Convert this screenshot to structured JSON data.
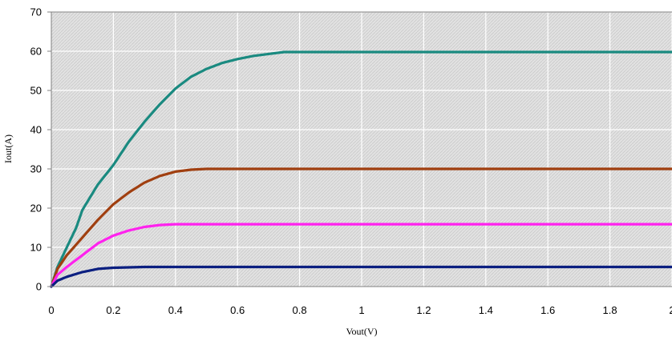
{
  "chart_data": {
    "type": "line",
    "xlabel": "Vout(V)",
    "ylabel": "Iout(A)",
    "xlim": [
      0,
      2
    ],
    "ylim": [
      0,
      70
    ],
    "xticks": [
      0,
      0.2,
      0.4,
      0.6,
      0.8,
      1,
      1.2,
      1.4,
      1.6,
      1.8,
      2
    ],
    "xtick_labels": [
      "0",
      "0.2",
      "0.4",
      "0.6",
      "0.8",
      "1",
      "1.2",
      "1.4",
      "1.6",
      "1.8",
      "2"
    ],
    "yticks": [
      0,
      10,
      20,
      30,
      40,
      50,
      60,
      70
    ],
    "ytick_labels": [
      "0",
      "10",
      "20",
      "30",
      "40",
      "50",
      "60",
      "70"
    ],
    "grid": true,
    "background": "hatched-gray",
    "series": [
      {
        "color": "#1a8a80",
        "x": [
          0,
          0.02,
          0.05,
          0.08,
          0.1,
          0.15,
          0.2,
          0.25,
          0.3,
          0.35,
          0.4,
          0.45,
          0.5,
          0.55,
          0.6,
          0.65,
          0.7,
          0.75,
          0.8,
          1.0,
          1.2,
          1.4,
          1.6,
          1.8,
          2.0
        ],
        "y": [
          0,
          5,
          10,
          15,
          19.5,
          26,
          31,
          37,
          42,
          46.5,
          50.5,
          53.5,
          55.5,
          57,
          58,
          58.8,
          59.3,
          59.8,
          59.8,
          59.8,
          59.8,
          59.8,
          59.8,
          59.8,
          59.8
        ]
      },
      {
        "color": "#a03f10",
        "x": [
          0,
          0.02,
          0.05,
          0.1,
          0.15,
          0.2,
          0.25,
          0.3,
          0.35,
          0.4,
          0.45,
          0.5,
          0.6,
          0.8,
          1.0,
          1.2,
          1.4,
          1.6,
          1.8,
          2.0
        ],
        "y": [
          0,
          4.5,
          8,
          12.5,
          17,
          21,
          24,
          26.5,
          28.2,
          29.3,
          29.8,
          30,
          30,
          30,
          30,
          30,
          30,
          30,
          30,
          30
        ]
      },
      {
        "color": "#ff22ee",
        "x": [
          0,
          0.02,
          0.05,
          0.1,
          0.15,
          0.2,
          0.25,
          0.3,
          0.35,
          0.4,
          0.5,
          0.6,
          0.8,
          1.0,
          1.2,
          1.4,
          1.6,
          1.8,
          2.0
        ],
        "y": [
          0,
          3,
          5,
          8,
          11,
          13,
          14.3,
          15.2,
          15.7,
          15.9,
          15.9,
          15.9,
          15.9,
          15.9,
          15.9,
          15.9,
          15.9,
          15.9,
          15.9
        ]
      },
      {
        "color": "#0b1f80",
        "x": [
          0,
          0.02,
          0.05,
          0.1,
          0.15,
          0.2,
          0.25,
          0.3,
          0.4,
          0.6,
          0.8,
          1.0,
          1.2,
          1.4,
          1.6,
          1.8,
          2.0
        ],
        "y": [
          0,
          1.5,
          2.5,
          3.7,
          4.5,
          4.8,
          4.9,
          5.0,
          5.0,
          5.0,
          5.0,
          5.0,
          5.0,
          5.0,
          5.0,
          5.0,
          5.0
        ]
      }
    ]
  }
}
